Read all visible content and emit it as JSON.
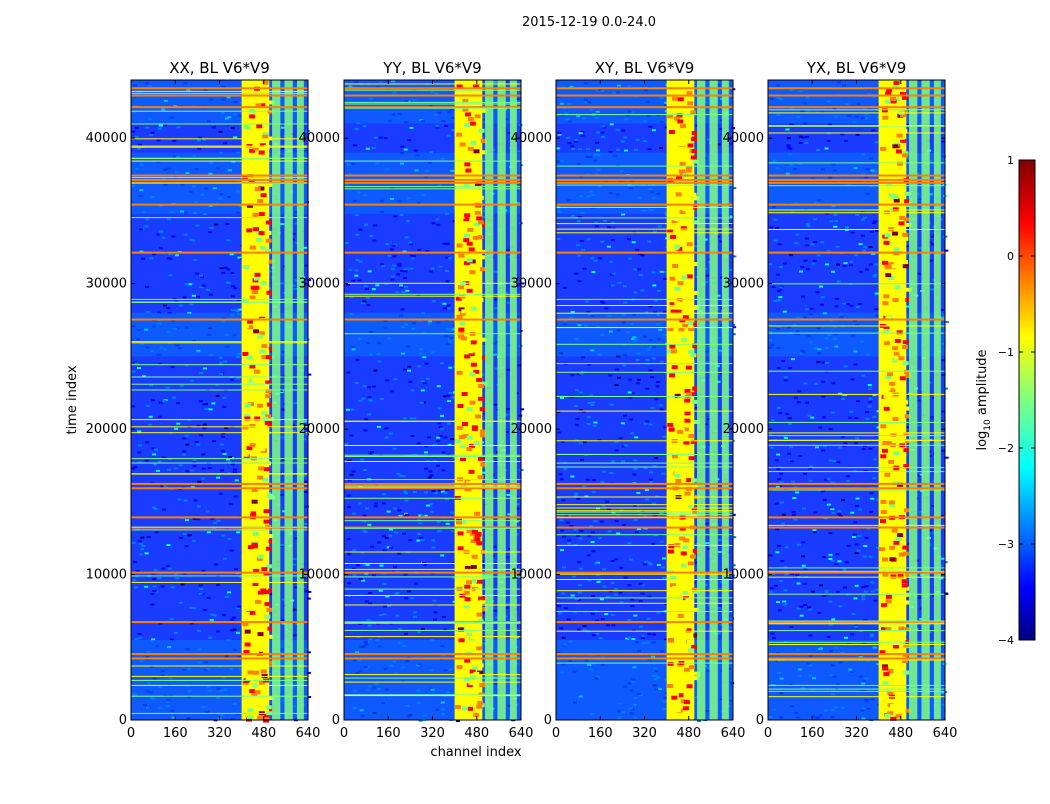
{
  "suptitle": "2015-12-19 0.0-24.0",
  "chart_data": {
    "type": "heatmap",
    "xlabel": "channel index",
    "ylabel": "time index",
    "xlim": [
      0,
      640
    ],
    "ylim": [
      0,
      44000
    ],
    "xticks": [
      "0",
      "160",
      "320",
      "480",
      "640"
    ],
    "yticks": [
      "0",
      "10000",
      "20000",
      "30000",
      "40000"
    ],
    "panels": [
      {
        "title": "XX, BL V6*V9"
      },
      {
        "title": "YY, BL V6*V9"
      },
      {
        "title": "XY, BL V6*V9"
      },
      {
        "title": "YX, BL V6*V9"
      }
    ],
    "colorbar": {
      "label": "log",
      "label_sub": "10",
      "label_rest": " amplitude",
      "range": [
        -4,
        1
      ],
      "ticks": [
        "1",
        "0",
        "−1",
        "−2",
        "−3",
        "−4"
      ]
    },
    "features": {
      "bright_channel_band": [
        400,
        500
      ],
      "secondary_channel_bands": [
        [
          510,
          540
        ],
        [
          555,
          585
        ],
        [
          600,
          625
        ]
      ],
      "bright_time_rows": [
        4300,
        4600,
        6800,
        10200,
        13300,
        14000,
        16000,
        16300,
        27600,
        32200,
        35500,
        37000,
        37200,
        37500,
        42200,
        43000,
        43500
      ],
      "elevated_time_bands": [
        [
          0,
          5500
        ],
        [
          25000,
          28000
        ],
        [
          34800,
          39000
        ],
        [
          41000,
          44000
        ]
      ],
      "colormap": [
        "#00007f",
        "#0000ff",
        "#007fff",
        "#00ffff",
        "#7fff7f",
        "#ffff00",
        "#ff7f00",
        "#ff0000",
        "#7f0000"
      ]
    }
  }
}
